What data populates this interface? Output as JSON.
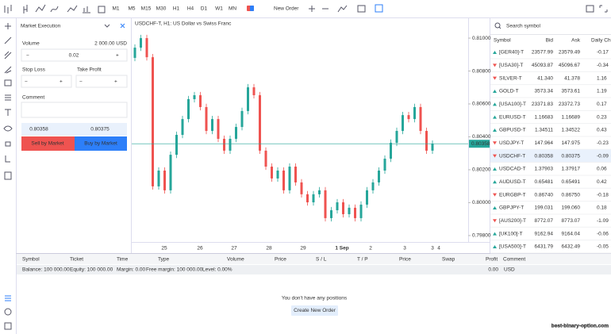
{
  "toolbar": {
    "timeframes": [
      "M1",
      "M5",
      "M15",
      "M30",
      "H1",
      "H4",
      "D1",
      "W1",
      "MN"
    ],
    "active_timeframe": "H1",
    "new_order": "New Order"
  },
  "order_panel": {
    "title": "Market Execution",
    "volume_label": "Volume",
    "volume_info": "2 000.00 USD",
    "minus": "−",
    "plus": "+",
    "volume": "0.02",
    "stop_loss": "Stop Loss",
    "take_profit": "Take Profit",
    "comment": "Comment",
    "bid": "0.80358",
    "ask": "0.80375",
    "sell": "Sell by Market",
    "buy": "Buy by Market"
  },
  "chart": {
    "title": "USDCHF-T, H1: US Dollar vs Swiss Franc",
    "up_color": "#26a69a",
    "down_color": "#ef5350",
    "ylim": [
      0.79761,
      0.81116
    ],
    "yticks": [
      {
        "value": 0.81,
        "label": "0.81000"
      },
      {
        "value": 0.808,
        "label": "0.80800"
      },
      {
        "value": 0.806,
        "label": "0.80600"
      },
      {
        "value": 0.804,
        "label": "0.80400"
      },
      {
        "value": 0.802,
        "label": "0.80200"
      },
      {
        "value": 0.8,
        "label": "0.80000"
      },
      {
        "value": 0.798,
        "label": "0.79800"
      }
    ],
    "current_price": {
      "value": 0.80358,
      "label": "0.80358"
    },
    "x_labels": [
      "25",
      "26",
      "27",
      "28",
      "29",
      "1 Sep",
      "2",
      "3",
      "3",
      "4"
    ],
    "candles": {
      "open": [
        0.8088,
        0.80942,
        0.81,
        0.80884,
        0.80099,
        0.80195,
        0.80075,
        0.80291,
        0.80412,
        0.80508,
        0.80629,
        0.80653,
        0.80581,
        0.80436,
        0.80508,
        0.80388,
        0.80316,
        0.80388,
        0.8046,
        0.80557,
        0.80701,
        0.80653,
        0.80316,
        0.80219,
        0.80147,
        0.80195,
        0.80075,
        0.80219,
        0.80123,
        0.80051,
        0.80002,
        0.80051,
        0.80075,
        0.79906,
        0.79954,
        0.80002,
        0.7993,
        0.79969,
        0.79906,
        0.79988,
        0.80075,
        0.80123,
        0.80195,
        0.80267,
        0.80364,
        0.80436,
        0.80532,
        0.80508,
        0.80581,
        0.80436,
        0.80316
      ],
      "high": [
        0.80962,
        0.8102,
        0.8102,
        0.80904,
        0.80215,
        0.80215,
        0.80311,
        0.80432,
        0.80528,
        0.80649,
        0.80673,
        0.80673,
        0.80601,
        0.80528,
        0.80528,
        0.80408,
        0.80408,
        0.8048,
        0.80577,
        0.80721,
        0.80721,
        0.80673,
        0.80336,
        0.80239,
        0.80215,
        0.80215,
        0.80239,
        0.80239,
        0.80143,
        0.80071,
        0.80071,
        0.80095,
        0.80095,
        0.79974,
        0.80022,
        0.80022,
        0.79989,
        0.79989,
        0.80008,
        0.80095,
        0.80143,
        0.80215,
        0.80287,
        0.80384,
        0.80456,
        0.80552,
        0.80552,
        0.80601,
        0.80601,
        0.80456,
        0.80378
      ],
      "low": [
        0.8086,
        0.80922,
        0.80864,
        0.80079,
        0.80079,
        0.80055,
        0.80055,
        0.80271,
        0.80392,
        0.80488,
        0.80609,
        0.80561,
        0.80416,
        0.80416,
        0.80368,
        0.80296,
        0.80296,
        0.80368,
        0.8044,
        0.80537,
        0.80633,
        0.80296,
        0.80199,
        0.80127,
        0.80127,
        0.80055,
        0.80055,
        0.80103,
        0.80031,
        0.79982,
        0.79982,
        0.80031,
        0.79886,
        0.79886,
        0.79934,
        0.7991,
        0.7991,
        0.79886,
        0.79886,
        0.79968,
        0.80055,
        0.80103,
        0.80175,
        0.80247,
        0.80344,
        0.80416,
        0.80488,
        0.80488,
        0.80416,
        0.80296,
        0.80296
      ],
      "close": [
        0.80942,
        0.81,
        0.80884,
        0.80099,
        0.80195,
        0.80075,
        0.80291,
        0.80412,
        0.80508,
        0.80629,
        0.80653,
        0.80581,
        0.80436,
        0.80508,
        0.80388,
        0.80316,
        0.80388,
        0.8046,
        0.80557,
        0.80701,
        0.80653,
        0.80316,
        0.80219,
        0.80147,
        0.80195,
        0.80075,
        0.80219,
        0.80123,
        0.80051,
        0.80002,
        0.80051,
        0.80075,
        0.79906,
        0.79954,
        0.80002,
        0.7993,
        0.79969,
        0.79906,
        0.79988,
        0.80075,
        0.80123,
        0.80195,
        0.80267,
        0.80364,
        0.80436,
        0.80532,
        0.80508,
        0.80581,
        0.80436,
        0.80316,
        0.80358
      ]
    }
  },
  "watchlist": {
    "search_placeholder": "Search symbol",
    "columns": [
      "Symbol",
      "Bid",
      "Ask",
      "Daily Ch"
    ],
    "rows": [
      {
        "symbol": "[GER40]-T",
        "bid": "23577.99",
        "ask": "23579.49",
        "change": "-0.17",
        "arrow": "up",
        "bid_tick": "up",
        "ask_tick": "up"
      },
      {
        "symbol": "[USA30]-T",
        "bid": "45093.87",
        "ask": "45096.67",
        "change": "-0.34",
        "arrow": "down",
        "bid_tick": "down",
        "ask_tick": "down"
      },
      {
        "symbol": "SILVER-T",
        "bid": "41.340",
        "ask": "41.378",
        "change": "1.16",
        "arrow": "down",
        "bid_tick": "down",
        "ask_tick": "up"
      },
      {
        "symbol": "GOLD-T",
        "bid": "3573.34",
        "ask": "3573.61",
        "change": "1.19",
        "arrow": "up",
        "bid_tick": "up",
        "ask_tick": "up"
      },
      {
        "symbol": "[USA100]-T",
        "bid": "23371.83",
        "ask": "23372.73",
        "change": "0.17",
        "arrow": "up",
        "bid_tick": "up",
        "ask_tick": "up"
      },
      {
        "symbol": "EURUSD-T",
        "bid": "1.16683",
        "ask": "1.16689",
        "change": "0.23",
        "arrow": "up",
        "bid_tick": "up",
        "ask_tick": "up"
      },
      {
        "symbol": "GBPUSD-T",
        "bid": "1.34511",
        "ask": "1.34522",
        "change": "0.43",
        "arrow": "up",
        "bid_tick": "up",
        "ask_tick": "up"
      },
      {
        "symbol": "USDJPY-T",
        "bid": "147.964",
        "ask": "147.975",
        "change": "-0.23",
        "arrow": "down",
        "bid_tick": "down",
        "ask_tick": "down"
      },
      {
        "symbol": "USDCHF-T",
        "bid": "0.80358",
        "ask": "0.80375",
        "change": "-0.09",
        "arrow": "down",
        "bid_tick": "up",
        "ask_tick": "up",
        "selected": true
      },
      {
        "symbol": "USDCAD-T",
        "bid": "1.37903",
        "ask": "1.37917",
        "change": "0.06",
        "arrow": "up",
        "bid_tick": "up",
        "ask_tick": "down"
      },
      {
        "symbol": "AUDUSD-T",
        "bid": "0.65481",
        "ask": "0.65491",
        "change": "0.42",
        "arrow": "up",
        "bid_tick": "up",
        "ask_tick": "up"
      },
      {
        "symbol": "EURGBP-T",
        "bid": "0.86740",
        "ask": "0.86750",
        "change": "-0.18",
        "arrow": "down",
        "bid_tick": "down",
        "ask_tick": "down"
      },
      {
        "symbol": "GBPJPY-T",
        "bid": "199.031",
        "ask": "199.060",
        "change": "0.18",
        "arrow": "up",
        "bid_tick": "up",
        "ask_tick": "up"
      },
      {
        "symbol": "[AUS200]-T",
        "bid": "8772.07",
        "ask": "8773.07",
        "change": "-1.09",
        "arrow": "down",
        "bid_tick": "up",
        "ask_tick": "up"
      },
      {
        "symbol": "[UK100]-T",
        "bid": "9162.94",
        "ask": "9164.04",
        "change": "-0.06",
        "arrow": "up",
        "bid_tick": "up",
        "ask_tick": "up"
      },
      {
        "symbol": "[USA500]-T",
        "bid": "6431.79",
        "ask": "6432.49",
        "change": "-0.05",
        "arrow": "up",
        "bid_tick": "up",
        "ask_tick": "up"
      }
    ]
  },
  "terminal": {
    "columns": [
      "Symbol",
      "Ticket",
      "Time",
      "Type",
      "Volume",
      "Price",
      "S / L",
      "T / P",
      "Price",
      "Swap",
      "Profit",
      "Comment"
    ],
    "summary": [
      "Balance: 100 000.00",
      "Equity: 100 000.00",
      "Margin: 0.00",
      "Free margin: 100 000.00",
      "Level: 0.00%"
    ],
    "profit": "0.00",
    "currency": "USD",
    "empty_message": "You don't have any positions",
    "create_order": "Create New Order"
  },
  "watermark": "best-binary-option.com"
}
